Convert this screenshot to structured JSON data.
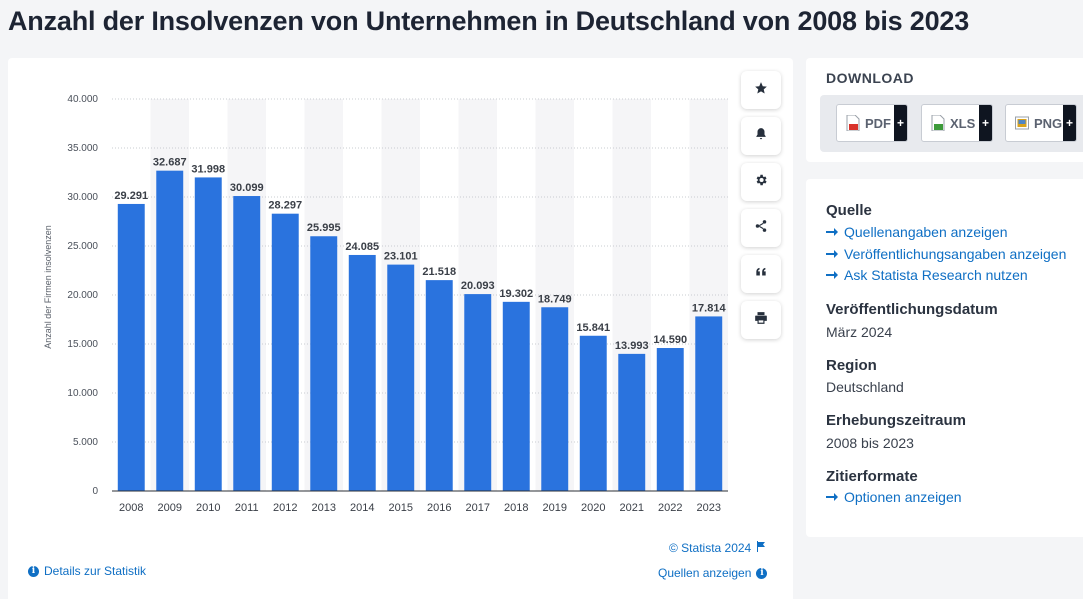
{
  "page": {
    "title": "Anzahl der Insolvenzen von Unternehmen in Deutschland von 2008 bis 2023"
  },
  "chart_data": {
    "type": "bar",
    "categories": [
      "2008",
      "2009",
      "2010",
      "2011",
      "2012",
      "2013",
      "2014",
      "2015",
      "2016",
      "2017",
      "2018",
      "2019",
      "2020",
      "2021",
      "2022",
      "2023"
    ],
    "values": [
      29291,
      32687,
      31998,
      30099,
      28297,
      25995,
      24085,
      23101,
      21518,
      20093,
      19302,
      18749,
      15841,
      13993,
      14590,
      17814
    ],
    "value_labels": [
      "29.291",
      "32.687",
      "31.998",
      "30.099",
      "28.297",
      "25.995",
      "24.085",
      "23.101",
      "21.518",
      "20.093",
      "19.302",
      "18.749",
      "15.841",
      "13.993",
      "14.590",
      "17.814"
    ],
    "yticks": [
      0,
      5000,
      10000,
      15000,
      20000,
      25000,
      30000,
      35000,
      40000
    ],
    "ytick_labels": [
      "0",
      "5.000",
      "10.000",
      "15.000",
      "20.000",
      "25.000",
      "30.000",
      "35.000",
      "40.000"
    ],
    "ylim": [
      0,
      40000
    ],
    "ylabel": "Anzahl der Firmen insolvenzen",
    "xlabel": "",
    "grid": true,
    "bar_color": "#2a73de"
  },
  "chart_footer": {
    "copyright": "© Statista 2024",
    "details_link": "Details zur Statistik",
    "sources_link": "Quellen anzeigen"
  },
  "toolbar": {
    "buttons": [
      "star",
      "bell",
      "gear",
      "share",
      "quote",
      "print"
    ]
  },
  "download": {
    "heading": "DOWNLOAD",
    "buttons": [
      {
        "label": "PDF",
        "color": "#d9322b"
      },
      {
        "label": "XLS",
        "color": "#3d9a3a"
      },
      {
        "label": "PNG",
        "color": "#d9a21b"
      }
    ],
    "plus": "+"
  },
  "info": {
    "source_title": "Quelle",
    "source_links": [
      "Quellenangaben anzeigen",
      "Veröffentlichungsangaben anzeigen",
      "Ask Statista Research nutzen"
    ],
    "pub_date_title": "Veröffentlichungsdatum",
    "pub_date": "März 2024",
    "region_title": "Region",
    "region": "Deutschland",
    "period_title": "Erhebungszeitraum",
    "period": "2008 bis 2023",
    "cite_title": "Zitierformate",
    "cite_link": "Optionen anzeigen"
  }
}
